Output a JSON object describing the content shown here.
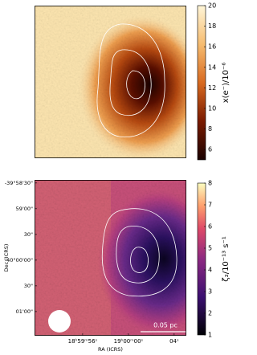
{
  "chart_data": [
    {
      "type": "heatmap",
      "colorbar_label": "x(e⁻)/10⁻⁶",
      "clim": [
        5,
        20
      ],
      "cticks": [
        6,
        8,
        10,
        12,
        14,
        16,
        18,
        20
      ]
    },
    {
      "type": "heatmap",
      "colorbar_label": "ζ₂/10⁻¹³ s⁻¹",
      "clim": [
        1,
        8
      ],
      "cticks": [
        1,
        2,
        3,
        4,
        5,
        6,
        7,
        8
      ],
      "xlabel": "RA (ICRS)",
      "ylabel": "Dec (ICRS)",
      "xlim": [
        284.9658,
        285.0211
      ],
      "xticks": [
        {
          "value": 284.98333,
          "label": "18ʰ59ᵐ56ˢ"
        },
        {
          "value": 285.0,
          "label": "19ʰ00ᵐ00ˢ"
        },
        {
          "value": 285.01667,
          "label": "04ˢ"
        }
      ],
      "ylim": [
        -40.0245,
        -39.974
      ],
      "yticks": [
        {
          "value": -39.975,
          "label": "-39°58'30\""
        },
        {
          "value": -39.98333,
          "label": "59'00\""
        },
        {
          "value": -39.99167,
          "label": "30\""
        },
        {
          "value": -40.0,
          "label": "-40°00'00\""
        },
        {
          "value": -40.00833,
          "label": "30\""
        },
        {
          "value": -40.01667,
          "label": "01'00\""
        }
      ],
      "scalebar_label": "0.05 pc"
    }
  ]
}
